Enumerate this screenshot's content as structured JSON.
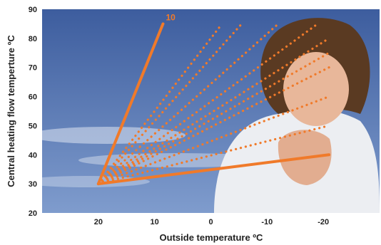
{
  "chart_data": {
    "type": "line",
    "xlabel": "Outside temperature ºC",
    "ylabel": "Central heating flow temperture ºC",
    "xlim": [
      30,
      -30
    ],
    "ylim": [
      20,
      90
    ],
    "x_ticks": [
      "20",
      "10",
      "0",
      "-10",
      "-20"
    ],
    "x_tick_values": [
      20,
      10,
      0,
      -10,
      -20
    ],
    "y_ticks": [
      "20",
      "30",
      "40",
      "50",
      "60",
      "70",
      "80",
      "90"
    ],
    "y_tick_values": [
      20,
      30,
      40,
      50,
      60,
      70,
      80,
      90
    ],
    "origin": [
      20,
      30
    ],
    "highlight_label": "10",
    "line_color": "#f07a2a",
    "series": [
      {
        "style": "solid",
        "values": [
          [
            20,
            30
          ],
          [
            8.5,
            85
          ]
        ]
      },
      {
        "style": "dotted",
        "values": [
          [
            20,
            30
          ],
          [
            -2,
            85
          ]
        ]
      },
      {
        "style": "dotted",
        "values": [
          [
            20,
            30
          ],
          [
            -5.5,
            85
          ]
        ]
      },
      {
        "style": "dotted",
        "values": [
          [
            20,
            30
          ],
          [
            -12,
            85
          ]
        ]
      },
      {
        "style": "dotted",
        "values": [
          [
            20,
            30
          ],
          [
            -19,
            85
          ]
        ]
      },
      {
        "style": "dotted",
        "values": [
          [
            20,
            30
          ],
          [
            -21,
            80
          ]
        ]
      },
      {
        "style": "dotted",
        "values": [
          [
            20,
            30
          ],
          [
            -21,
            75
          ]
        ]
      },
      {
        "style": "dotted",
        "values": [
          [
            20,
            30
          ],
          [
            -21,
            70
          ]
        ]
      },
      {
        "style": "dotted",
        "values": [
          [
            20,
            30
          ],
          [
            -21,
            60
          ]
        ]
      },
      {
        "style": "dotted",
        "values": [
          [
            20,
            30
          ],
          [
            -21,
            50
          ]
        ]
      },
      {
        "style": "solid",
        "values": [
          [
            20,
            30
          ],
          [
            -21,
            40
          ]
        ]
      }
    ],
    "background": {
      "sky_top": "#3d5d9e",
      "sky_bottom": "#7f9ccd",
      "cloud": "#dfe6f2"
    }
  }
}
